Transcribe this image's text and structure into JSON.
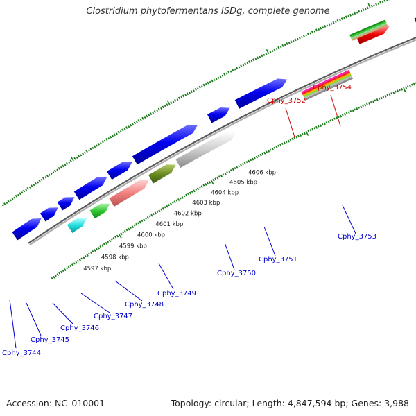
{
  "title": "Clostridium phytofermentans ISDg, complete genome",
  "footer": {
    "accession": "Accession: NC_010001",
    "topology": "Topology: circular; Length: 4,847,594 bp; Genes: 3,988"
  },
  "colors": {
    "forward_cds": "#0000ee",
    "backbone": "#8c8c8c",
    "ticks": "#1a7a1a",
    "label_blue": "#0000cc",
    "label_red": "#cc0000"
  },
  "scale_labels": [
    "4597 kbp",
    "4598 kbp",
    "4599 kbp",
    "4600 kbp",
    "4601 kbp",
    "4602 kbp",
    "4603 kbp",
    "4604 kbp",
    "4605 kbp",
    "4606 kbp"
  ],
  "gene_labels": [
    {
      "id": "Cphy_3744",
      "color": "blue"
    },
    {
      "id": "Cphy_3745",
      "color": "blue"
    },
    {
      "id": "Cphy_3746",
      "color": "blue"
    },
    {
      "id": "Cphy_3747",
      "color": "blue"
    },
    {
      "id": "Cphy_3748",
      "color": "blue"
    },
    {
      "id": "Cphy_3749",
      "color": "blue"
    },
    {
      "id": "Cphy_3750",
      "color": "blue"
    },
    {
      "id": "Cphy_3751",
      "color": "blue"
    },
    {
      "id": "Cphy_3752",
      "color": "red"
    },
    {
      "id": "Cphy_3753",
      "color": "blue"
    },
    {
      "id": "Cphy_3754",
      "color": "red"
    }
  ]
}
